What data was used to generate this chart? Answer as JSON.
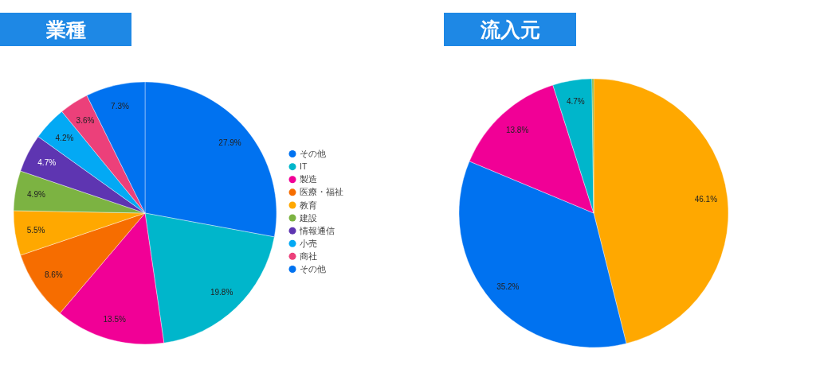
{
  "chart_data": [
    {
      "type": "pie",
      "title": "業種",
      "categories": [
        "その他",
        "IT",
        "製造",
        "医療・福祉",
        "教育",
        "建設",
        "情報通信",
        "小売",
        "商社",
        "その他"
      ],
      "values": [
        27.9,
        19.8,
        13.5,
        8.6,
        5.5,
        4.9,
        4.7,
        4.2,
        3.6,
        7.3
      ],
      "colors": [
        "#0072f0",
        "#00b6cb",
        "#f10096",
        "#f66d00",
        "#ffa800",
        "#7cb342",
        "#5e35b1",
        "#03a9f4",
        "#ec407a",
        "#0072f0"
      ],
      "value_labels": [
        "27.9%",
        "19.8%",
        "13.5%",
        "8.6%",
        "5.5%",
        "4.9%",
        "4.7%",
        "4.2%",
        "3.6%",
        "7.3%"
      ],
      "legend": "right"
    },
    {
      "type": "pie",
      "title": "流入元",
      "categories": [
        null,
        null,
        null,
        null,
        null
      ],
      "values": [
        46.1,
        35.2,
        13.8,
        4.7,
        0.2
      ],
      "colors": [
        "#ffa800",
        "#0072f0",
        "#f10096",
        "#00b6cb",
        "#7cb342"
      ],
      "value_labels": [
        "46.1%",
        "35.2%",
        "13.8%",
        "4.7%",
        null
      ]
    }
  ]
}
